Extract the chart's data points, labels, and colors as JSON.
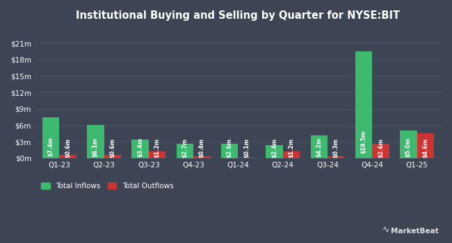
{
  "title": "Institutional Buying and Selling by Quarter for NYSE:BIT",
  "quarters": [
    "Q1-23",
    "Q2-23",
    "Q3-23",
    "Q4-23",
    "Q1-24",
    "Q2-24",
    "Q3-24",
    "Q4-24",
    "Q1-25"
  ],
  "inflows": [
    7.4,
    6.1,
    3.4,
    2.7,
    2.6,
    2.4,
    4.2,
    19.5,
    5.0
  ],
  "outflows": [
    0.6,
    0.6,
    1.2,
    0.4,
    0.1,
    1.2,
    0.3,
    2.6,
    4.6
  ],
  "inflow_labels": [
    "$7.4m",
    "$6.1m",
    "$3.4m",
    "$2.7m",
    "$2.6m",
    "$2.4m",
    "$4.2m",
    "$19.5m",
    "$5.0m"
  ],
  "outflow_labels": [
    "$0.6m",
    "$0.6m",
    "$1.2m",
    "$0.4m",
    "$0.1m",
    "$1.2m",
    "$0.3m",
    "$2.6m",
    "$4.6m"
  ],
  "inflow_color": "#3dba6f",
  "outflow_color": "#cc3333",
  "bg_color": "#3d4554",
  "grid_color": "#4d5464",
  "text_color": "#ffffff",
  "bar_width": 0.38,
  "ylim": [
    0,
    23.0
  ],
  "yticks": [
    0,
    3,
    6,
    9,
    12,
    15,
    18,
    21
  ],
  "ytick_labels": [
    "$0m",
    "$3m",
    "$6m",
    "$9m",
    "$12m",
    "$15m",
    "$18m",
    "$21m"
  ],
  "legend_inflow": "Total Inflows",
  "legend_outflow": "Total Outflows"
}
